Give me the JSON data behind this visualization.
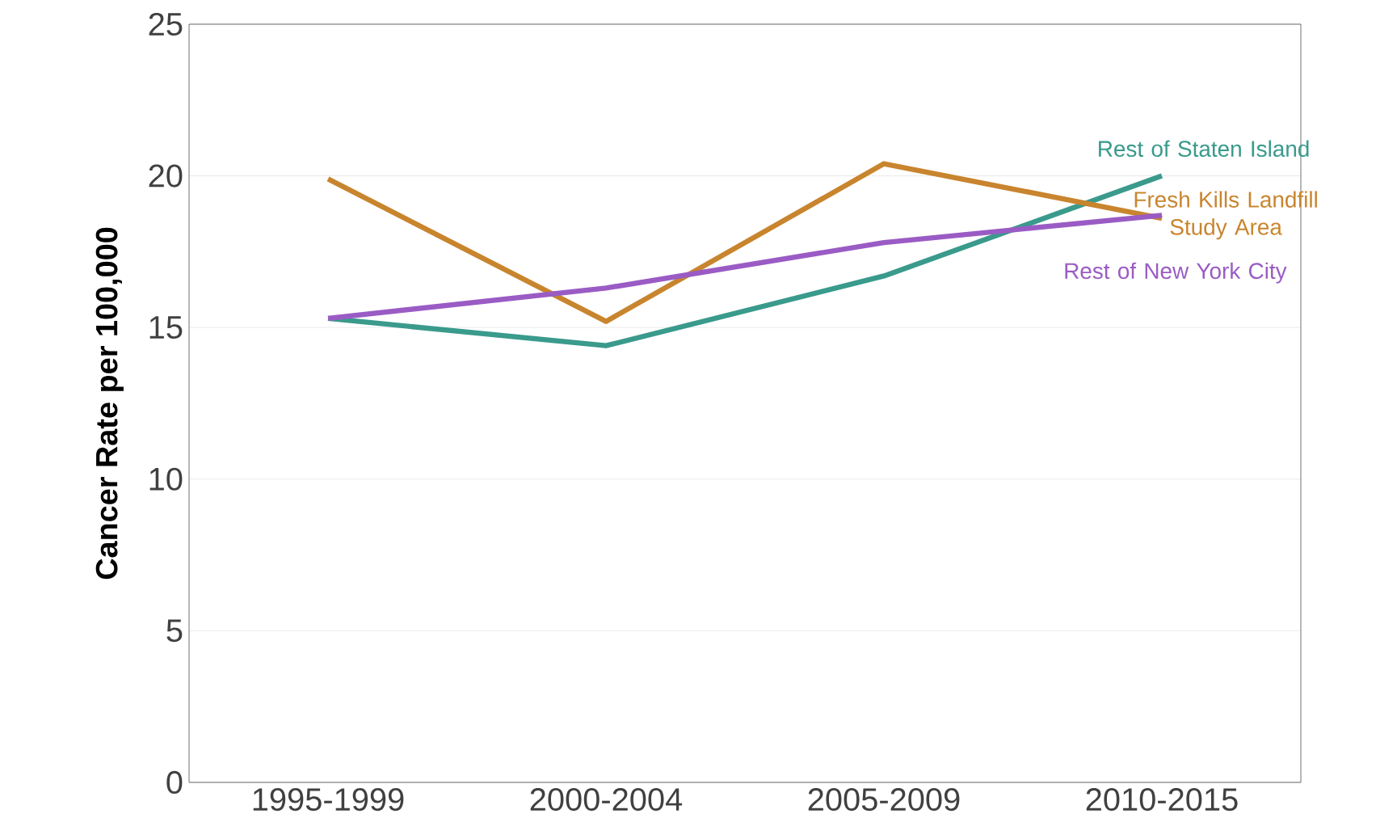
{
  "chart_data": {
    "type": "line",
    "ylabel": "Cancer Rate per 100,000",
    "categories": [
      "1995-1999",
      "2000-2004",
      "2005-2009",
      "2010-2015"
    ],
    "series": [
      {
        "name": "Rest of Staten Island",
        "color": "#3a9a8c",
        "values": [
          15.3,
          14.4,
          16.7,
          20.0
        ]
      },
      {
        "name": "Fresh Kills Landfill Study Area",
        "color": "#c8852e",
        "values": [
          19.9,
          15.2,
          20.4,
          18.6
        ]
      },
      {
        "name": "Rest of New York City",
        "color": "#9a5cc4",
        "values": [
          15.3,
          16.3,
          17.8,
          18.7
        ]
      }
    ],
    "ylim": [
      0,
      25
    ],
    "yticks": [
      0,
      5,
      10,
      15,
      20,
      25
    ],
    "grid": "y",
    "legend": false,
    "marker": "none",
    "line_style": "solid"
  }
}
